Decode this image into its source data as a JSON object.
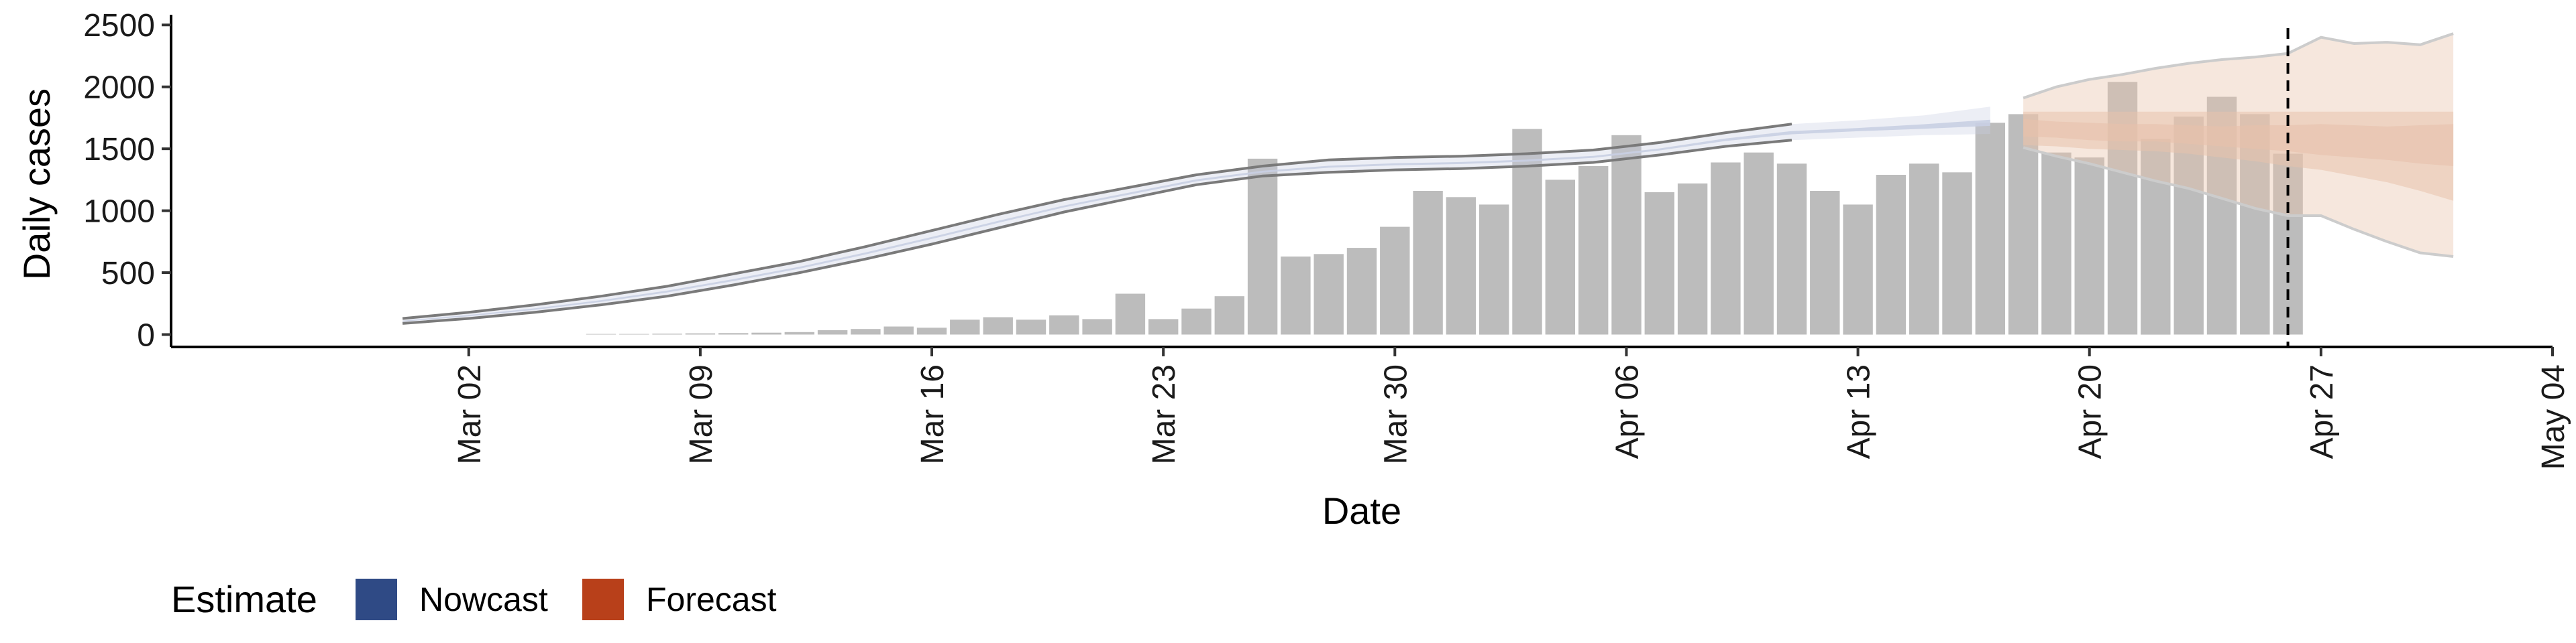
{
  "chart_data": {
    "type": "bar",
    "xlabel": "Date",
    "ylabel": "Daily cases",
    "ylim": [
      -100,
      2550
    ],
    "yticks": [
      0,
      500,
      1000,
      1500,
      2000,
      2500
    ],
    "xlim": [
      "2020-02-22",
      "2020-05-04"
    ],
    "xticks": [
      {
        "date": "2020-03-02",
        "label": "Mar 02"
      },
      {
        "date": "2020-03-09",
        "label": "Mar 09"
      },
      {
        "date": "2020-03-16",
        "label": "Mar 16"
      },
      {
        "date": "2020-03-23",
        "label": "Mar 23"
      },
      {
        "date": "2020-03-30",
        "label": "Mar 30"
      },
      {
        "date": "2020-04-06",
        "label": "Apr 06"
      },
      {
        "date": "2020-04-13",
        "label": "Apr 13"
      },
      {
        "date": "2020-04-20",
        "label": "Apr 20"
      },
      {
        "date": "2020-04-27",
        "label": "Apr 27"
      },
      {
        "date": "2020-05-04",
        "label": "May 04"
      }
    ],
    "bars": {
      "dates": [
        "2020-03-06",
        "2020-03-07",
        "2020-03-08",
        "2020-03-09",
        "2020-03-10",
        "2020-03-11",
        "2020-03-12",
        "2020-03-13",
        "2020-03-14",
        "2020-03-15",
        "2020-03-16",
        "2020-03-17",
        "2020-03-18",
        "2020-03-19",
        "2020-03-20",
        "2020-03-21",
        "2020-03-22",
        "2020-03-23",
        "2020-03-24",
        "2020-03-25",
        "2020-03-26",
        "2020-03-27",
        "2020-03-28",
        "2020-03-29",
        "2020-03-30",
        "2020-03-31",
        "2020-04-01",
        "2020-04-02",
        "2020-04-03",
        "2020-04-04",
        "2020-04-05",
        "2020-04-06",
        "2020-04-07",
        "2020-04-08",
        "2020-04-09",
        "2020-04-10",
        "2020-04-11",
        "2020-04-12",
        "2020-04-13",
        "2020-04-14",
        "2020-04-15",
        "2020-04-16",
        "2020-04-17",
        "2020-04-18",
        "2020-04-19",
        "2020-04-20",
        "2020-04-21",
        "2020-04-22",
        "2020-04-23",
        "2020-04-24",
        "2020-04-25",
        "2020-04-26"
      ],
      "values": [
        5,
        5,
        7,
        10,
        12,
        15,
        20,
        35,
        45,
        65,
        55,
        120,
        140,
        120,
        155,
        125,
        330,
        125,
        210,
        310,
        1420,
        630,
        650,
        700,
        870,
        1160,
        1110,
        1050,
        1660,
        1250,
        1360,
        1610,
        1150,
        1220,
        1390,
        1470,
        1380,
        1160,
        1050,
        1290,
        1380,
        1310,
        1710,
        1780,
        1470,
        1430,
        2040,
        1580,
        1760,
        1920,
        1780,
        1460
      ]
    },
    "nowcast": {
      "dates": [
        "2020-02-29",
        "2020-03-02",
        "2020-03-04",
        "2020-03-06",
        "2020-03-08",
        "2020-03-10",
        "2020-03-12",
        "2020-03-14",
        "2020-03-16",
        "2020-03-18",
        "2020-03-20",
        "2020-03-22",
        "2020-03-24",
        "2020-03-26",
        "2020-03-28",
        "2020-03-30",
        "2020-04-01",
        "2020-04-03",
        "2020-04-05",
        "2020-04-07",
        "2020-04-09",
        "2020-04-11",
        "2020-04-13",
        "2020-04-15",
        "2020-04-17"
      ],
      "outer_upper": [
        130,
        180,
        240,
        310,
        390,
        490,
        590,
        710,
        840,
        970,
        1090,
        1190,
        1290,
        1360,
        1410,
        1430,
        1440,
        1460,
        1490,
        1550,
        1630,
        1700,
        1730,
        1770,
        1840
      ],
      "outer_lower": [
        90,
        130,
        180,
        240,
        310,
        400,
        500,
        610,
        730,
        860,
        990,
        1100,
        1210,
        1280,
        1310,
        1330,
        1340,
        1360,
        1390,
        1450,
        1520,
        1570,
        1590,
        1610,
        1620
      ],
      "inner_upper": [
        112,
        158,
        212,
        278,
        355,
        448,
        548,
        663,
        788,
        918,
        1043,
        1148,
        1253,
        1323,
        1363,
        1383,
        1393,
        1413,
        1443,
        1503,
        1583,
        1643,
        1668,
        1698,
        1735
      ],
      "inner_lower": [
        104,
        148,
        200,
        264,
        340,
        432,
        532,
        647,
        772,
        902,
        1027,
        1132,
        1237,
        1307,
        1347,
        1367,
        1377,
        1397,
        1427,
        1487,
        1563,
        1617,
        1642,
        1662,
        1685
      ]
    },
    "forecast": {
      "dates": [
        "2020-04-18",
        "2020-04-19",
        "2020-04-20",
        "2020-04-21",
        "2020-04-22",
        "2020-04-23",
        "2020-04-24",
        "2020-04-25",
        "2020-04-26",
        "2020-04-27",
        "2020-04-28",
        "2020-04-29",
        "2020-04-30",
        "2020-05-01"
      ],
      "outer_upper": [
        1910,
        2000,
        2060,
        2100,
        2150,
        2190,
        2220,
        2240,
        2270,
        2400,
        2350,
        2360,
        2340,
        2430
      ],
      "outer_lower": [
        1510,
        1440,
        1380,
        1310,
        1240,
        1180,
        1100,
        1020,
        960,
        960,
        850,
        750,
        660,
        630
      ],
      "inner_upper": [
        1800,
        1800,
        1800,
        1800,
        1800,
        1800,
        1800,
        1800,
        1800,
        1800,
        1800,
        1800,
        1800,
        1800
      ],
      "inner_lower": [
        1530,
        1520,
        1500,
        1490,
        1480,
        1460,
        1430,
        1400,
        1360,
        1330,
        1280,
        1230,
        1160,
        1080
      ],
      "mid_upper": [
        1740,
        1720,
        1710,
        1700,
        1700,
        1690,
        1680,
        1690,
        1690,
        1700,
        1690,
        1680,
        1690,
        1700
      ],
      "mid_lower": [
        1600,
        1590,
        1570,
        1560,
        1560,
        1540,
        1520,
        1500,
        1480,
        1450,
        1430,
        1410,
        1380,
        1360
      ]
    },
    "vline_date": "2020-04-26",
    "legend": {
      "title": "Estimate",
      "entries": [
        {
          "label": "Nowcast",
          "color": "#2f4a85"
        },
        {
          "label": "Forecast",
          "color": "#b8401a"
        }
      ]
    },
    "colors": {
      "bar": "#bcbcbc",
      "nowcast_band": "#c9cfe3",
      "forecast_band": "#e8c2ab",
      "bound_line": "#7a7a7a"
    }
  }
}
